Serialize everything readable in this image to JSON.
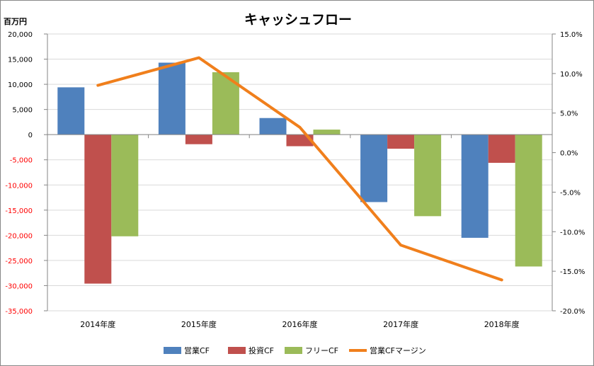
{
  "chart_data": {
    "type": "bar",
    "title": "キャッシュフロー",
    "ylabel": "百万円",
    "categories": [
      "2014年度",
      "2015年度",
      "2016年度",
      "2017年度",
      "2018年度"
    ],
    "ylim": [
      -35000,
      20000
    ],
    "y_ticks": [
      "20,000",
      "15,000",
      "10,000",
      "5,000",
      "0",
      "-5,000",
      "-10,000",
      "-15,000",
      "-20,000",
      "-25,000",
      "-30,000",
      "-35,000"
    ],
    "y2lim": [
      -0.2,
      0.15
    ],
    "y2_ticks": [
      "15.0%",
      "10.0%",
      "5.0%",
      "0.0%",
      "-5.0%",
      "-10.0%",
      "-15.0%",
      "-20.0%"
    ],
    "negative_tick_color": "#ff0000",
    "grid": true,
    "legend_position": "bottom",
    "series": [
      {
        "name": "営業CF",
        "type": "bar",
        "color": "#4f81bd",
        "values": [
          9400,
          14300,
          3300,
          -13400,
          -20500
        ]
      },
      {
        "name": "投資CF",
        "type": "bar",
        "color": "#c0504d",
        "values": [
          -29600,
          -1900,
          -2300,
          -2800,
          -5600
        ]
      },
      {
        "name": "フリーCF",
        "type": "bar",
        "color": "#9bbb59",
        "values": [
          -20200,
          12400,
          1000,
          -16200,
          -26200
        ]
      },
      {
        "name": "営業CFマージン",
        "type": "line",
        "axis": "secondary",
        "color": "#f07f1c",
        "values": [
          0.085,
          0.12,
          0.032,
          -0.117,
          -0.161
        ]
      }
    ]
  }
}
